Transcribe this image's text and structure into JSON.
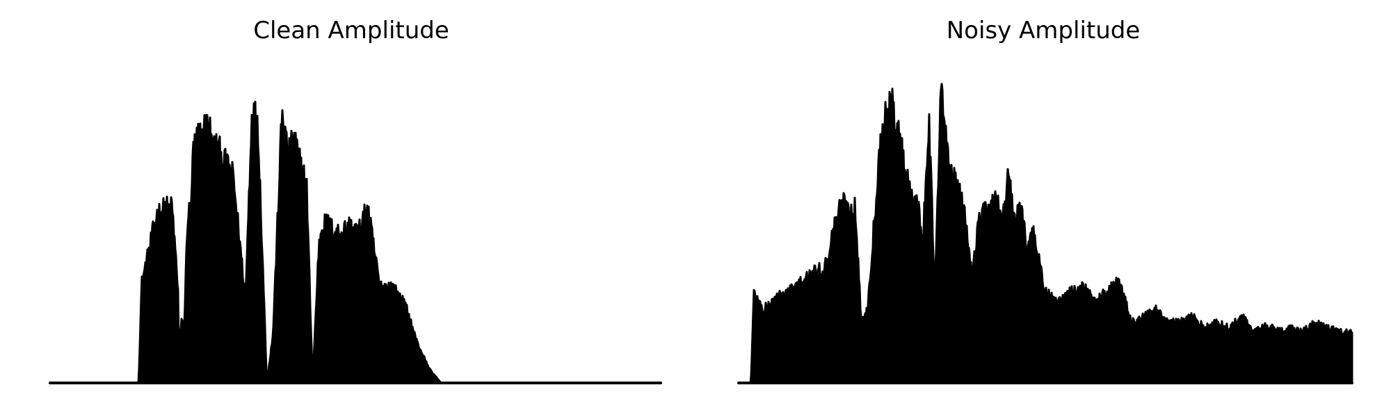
{
  "chart_data": [
    {
      "type": "area",
      "title": "Clean Amplitude",
      "xlabel": "",
      "ylabel": "",
      "axes_visible": false,
      "color": "#000000",
      "ylim": [
        0,
        1
      ],
      "xlim": [
        0,
        1
      ],
      "series": [
        {
          "x": [
            0,
            0.145,
            0.15,
            0.16,
            0.175,
            0.19,
            0.2,
            0.21,
            0.205,
            0.215,
            0.22,
            0.225,
            0.23,
            0.235,
            0.245,
            0.25,
            0.26,
            0.265,
            0.275,
            0.28,
            0.3,
            0.32,
            0.33,
            0.34,
            0.355,
            0.365,
            0.38,
            0.39,
            0.4,
            0.41,
            0.42,
            0.43,
            0.44,
            0.445,
            0.455,
            0.465,
            0.475,
            0.49,
            0.505,
            0.52,
            0.54,
            0.56,
            0.575,
            0.585,
            0.6,
            0.62,
            0.64,
            0.66,
            0.67,
            1.0
          ],
          "y": [
            0,
            0,
            0.33,
            0.42,
            0.56,
            0.58,
            0.58,
            0.3,
            0.02,
            0.2,
            0.2,
            0.55,
            0.58,
            0.78,
            0.82,
            0.83,
            0.87,
            0.78,
            0.78,
            0.75,
            0.68,
            0.28,
            0.88,
            0.88,
            0.0,
            0.16,
            0.9,
            0.75,
            0.81,
            0.72,
            0.66,
            0.0,
            0.45,
            0.52,
            0.53,
            0.5,
            0.5,
            0.52,
            0.5,
            0.58,
            0.32,
            0.32,
            0.28,
            0.24,
            0.14,
            0.05,
            0.0,
            0.0,
            0.0,
            0.0
          ]
        }
      ]
    },
    {
      "type": "area",
      "title": "Noisy Amplitude",
      "xlabel": "",
      "ylabel": "",
      "axes_visible": false,
      "color": "#000000",
      "ylim": [
        0,
        1
      ],
      "xlim": [
        0,
        1
      ],
      "series": [
        {
          "x": [
            0,
            0.02,
            0.025,
            0.04,
            0.06,
            0.08,
            0.1,
            0.12,
            0.14,
            0.16,
            0.17,
            0.18,
            0.19,
            0.2,
            0.21,
            0.23,
            0.24,
            0.25,
            0.26,
            0.27,
            0.28,
            0.29,
            0.3,
            0.31,
            0.32,
            0.33,
            0.34,
            0.35,
            0.36,
            0.37,
            0.38,
            0.39,
            0.4,
            0.41,
            0.42,
            0.43,
            0.44,
            0.45,
            0.46,
            0.47,
            0.48,
            0.5,
            0.52,
            0.54,
            0.56,
            0.58,
            0.6,
            0.62,
            0.64,
            0.66,
            0.68,
            0.7,
            0.72,
            0.74,
            0.76,
            0.78,
            0.8,
            0.82,
            0.84,
            0.86,
            0.88,
            0.9,
            0.92,
            0.94,
            0.96,
            0.98,
            1.0
          ],
          "y": [
            0,
            0,
            0.3,
            0.24,
            0.28,
            0.3,
            0.33,
            0.36,
            0.38,
            0.55,
            0.6,
            0.57,
            0.58,
            0.2,
            0.24,
            0.78,
            0.88,
            0.92,
            0.84,
            0.72,
            0.64,
            0.62,
            0.46,
            0.88,
            0.3,
            0.98,
            0.76,
            0.68,
            0.62,
            0.55,
            0.35,
            0.52,
            0.58,
            0.56,
            0.62,
            0.54,
            0.68,
            0.53,
            0.58,
            0.46,
            0.5,
            0.3,
            0.26,
            0.3,
            0.32,
            0.27,
            0.3,
            0.34,
            0.2,
            0.22,
            0.24,
            0.2,
            0.2,
            0.22,
            0.18,
            0.2,
            0.18,
            0.22,
            0.17,
            0.19,
            0.17,
            0.18,
            0.17,
            0.2,
            0.18,
            0.17,
            0.17
          ]
        }
      ]
    }
  ]
}
